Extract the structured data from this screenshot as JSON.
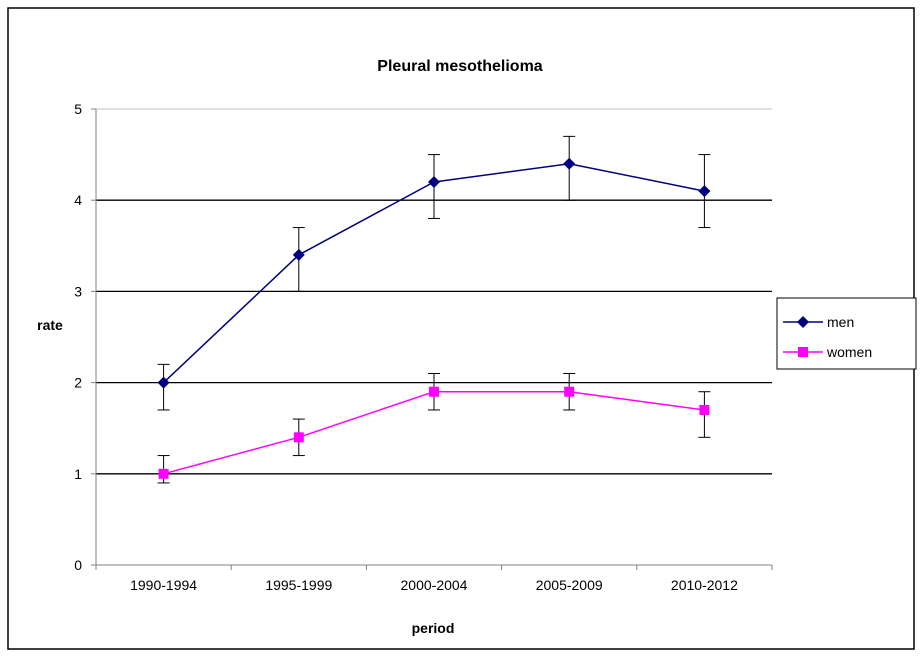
{
  "chart_data": {
    "type": "line",
    "title": "Pleural mesothelioma",
    "xlabel": "period",
    "ylabel": "rate",
    "categories": [
      "1990-1994",
      "1995-1999",
      "2000-2004",
      "2005-2009",
      "2010-2012"
    ],
    "ylim": [
      0,
      5
    ],
    "yticks": [
      "0",
      "1",
      "2",
      "3",
      "4",
      "5"
    ],
    "grid": true,
    "legend_position": "right",
    "series": [
      {
        "name": "men",
        "color": "#000080",
        "marker": "diamond",
        "values": [
          2.0,
          3.4,
          4.2,
          4.4,
          4.1
        ],
        "error_low": [
          1.7,
          3.0,
          3.8,
          4.0,
          3.7
        ],
        "error_high": [
          2.2,
          3.7,
          4.5,
          4.7,
          4.5
        ]
      },
      {
        "name": "women",
        "color": "#FF00FF",
        "marker": "square",
        "values": [
          1.0,
          1.4,
          1.9,
          1.9,
          1.7
        ],
        "error_low": [
          0.9,
          1.2,
          1.7,
          1.7,
          1.4
        ],
        "error_high": [
          1.2,
          1.6,
          2.1,
          2.1,
          1.9
        ]
      }
    ]
  }
}
